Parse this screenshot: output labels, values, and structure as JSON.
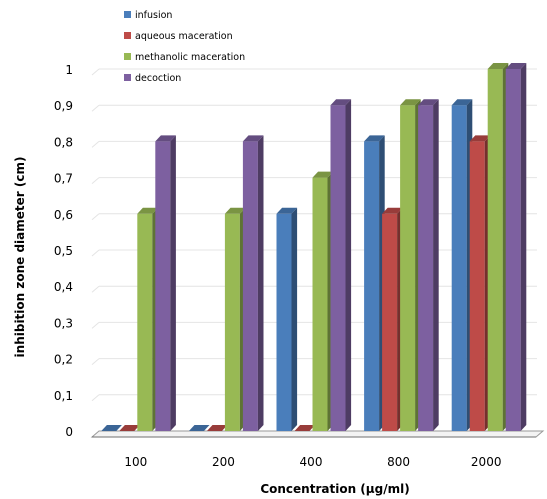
{
  "chart_data": {
    "type": "bar",
    "title": "",
    "xlabel": "Concentration (µg/ml)",
    "ylabel": "inhibition zone diameter (cm)",
    "categories": [
      "100",
      "200",
      "400",
      "800",
      "2000"
    ],
    "ylim": [
      0,
      1
    ],
    "yticks": [
      "0",
      "0,1",
      "0,2",
      "0,3",
      "0,4",
      "0,5",
      "0,6",
      "0,7",
      "0,8",
      "0,9",
      "1"
    ],
    "grid": true,
    "legend_position": "top-left",
    "series": [
      {
        "name": "infusion",
        "color": "#4a7ebb",
        "values": [
          0,
          0,
          0.6,
          0.8,
          0.9
        ]
      },
      {
        "name": "aqueous maceration",
        "color": "#be4b48",
        "values": [
          0,
          0,
          0,
          0.6,
          0.8
        ]
      },
      {
        "name": "methanolic maceration",
        "color": "#98b954",
        "values": [
          0.6,
          0.6,
          0.7,
          0.9,
          1.0
        ]
      },
      {
        "name": "decoction",
        "color": "#7d60a0",
        "values": [
          0.8,
          0.8,
          0.9,
          0.9,
          1.0
        ]
      }
    ]
  }
}
